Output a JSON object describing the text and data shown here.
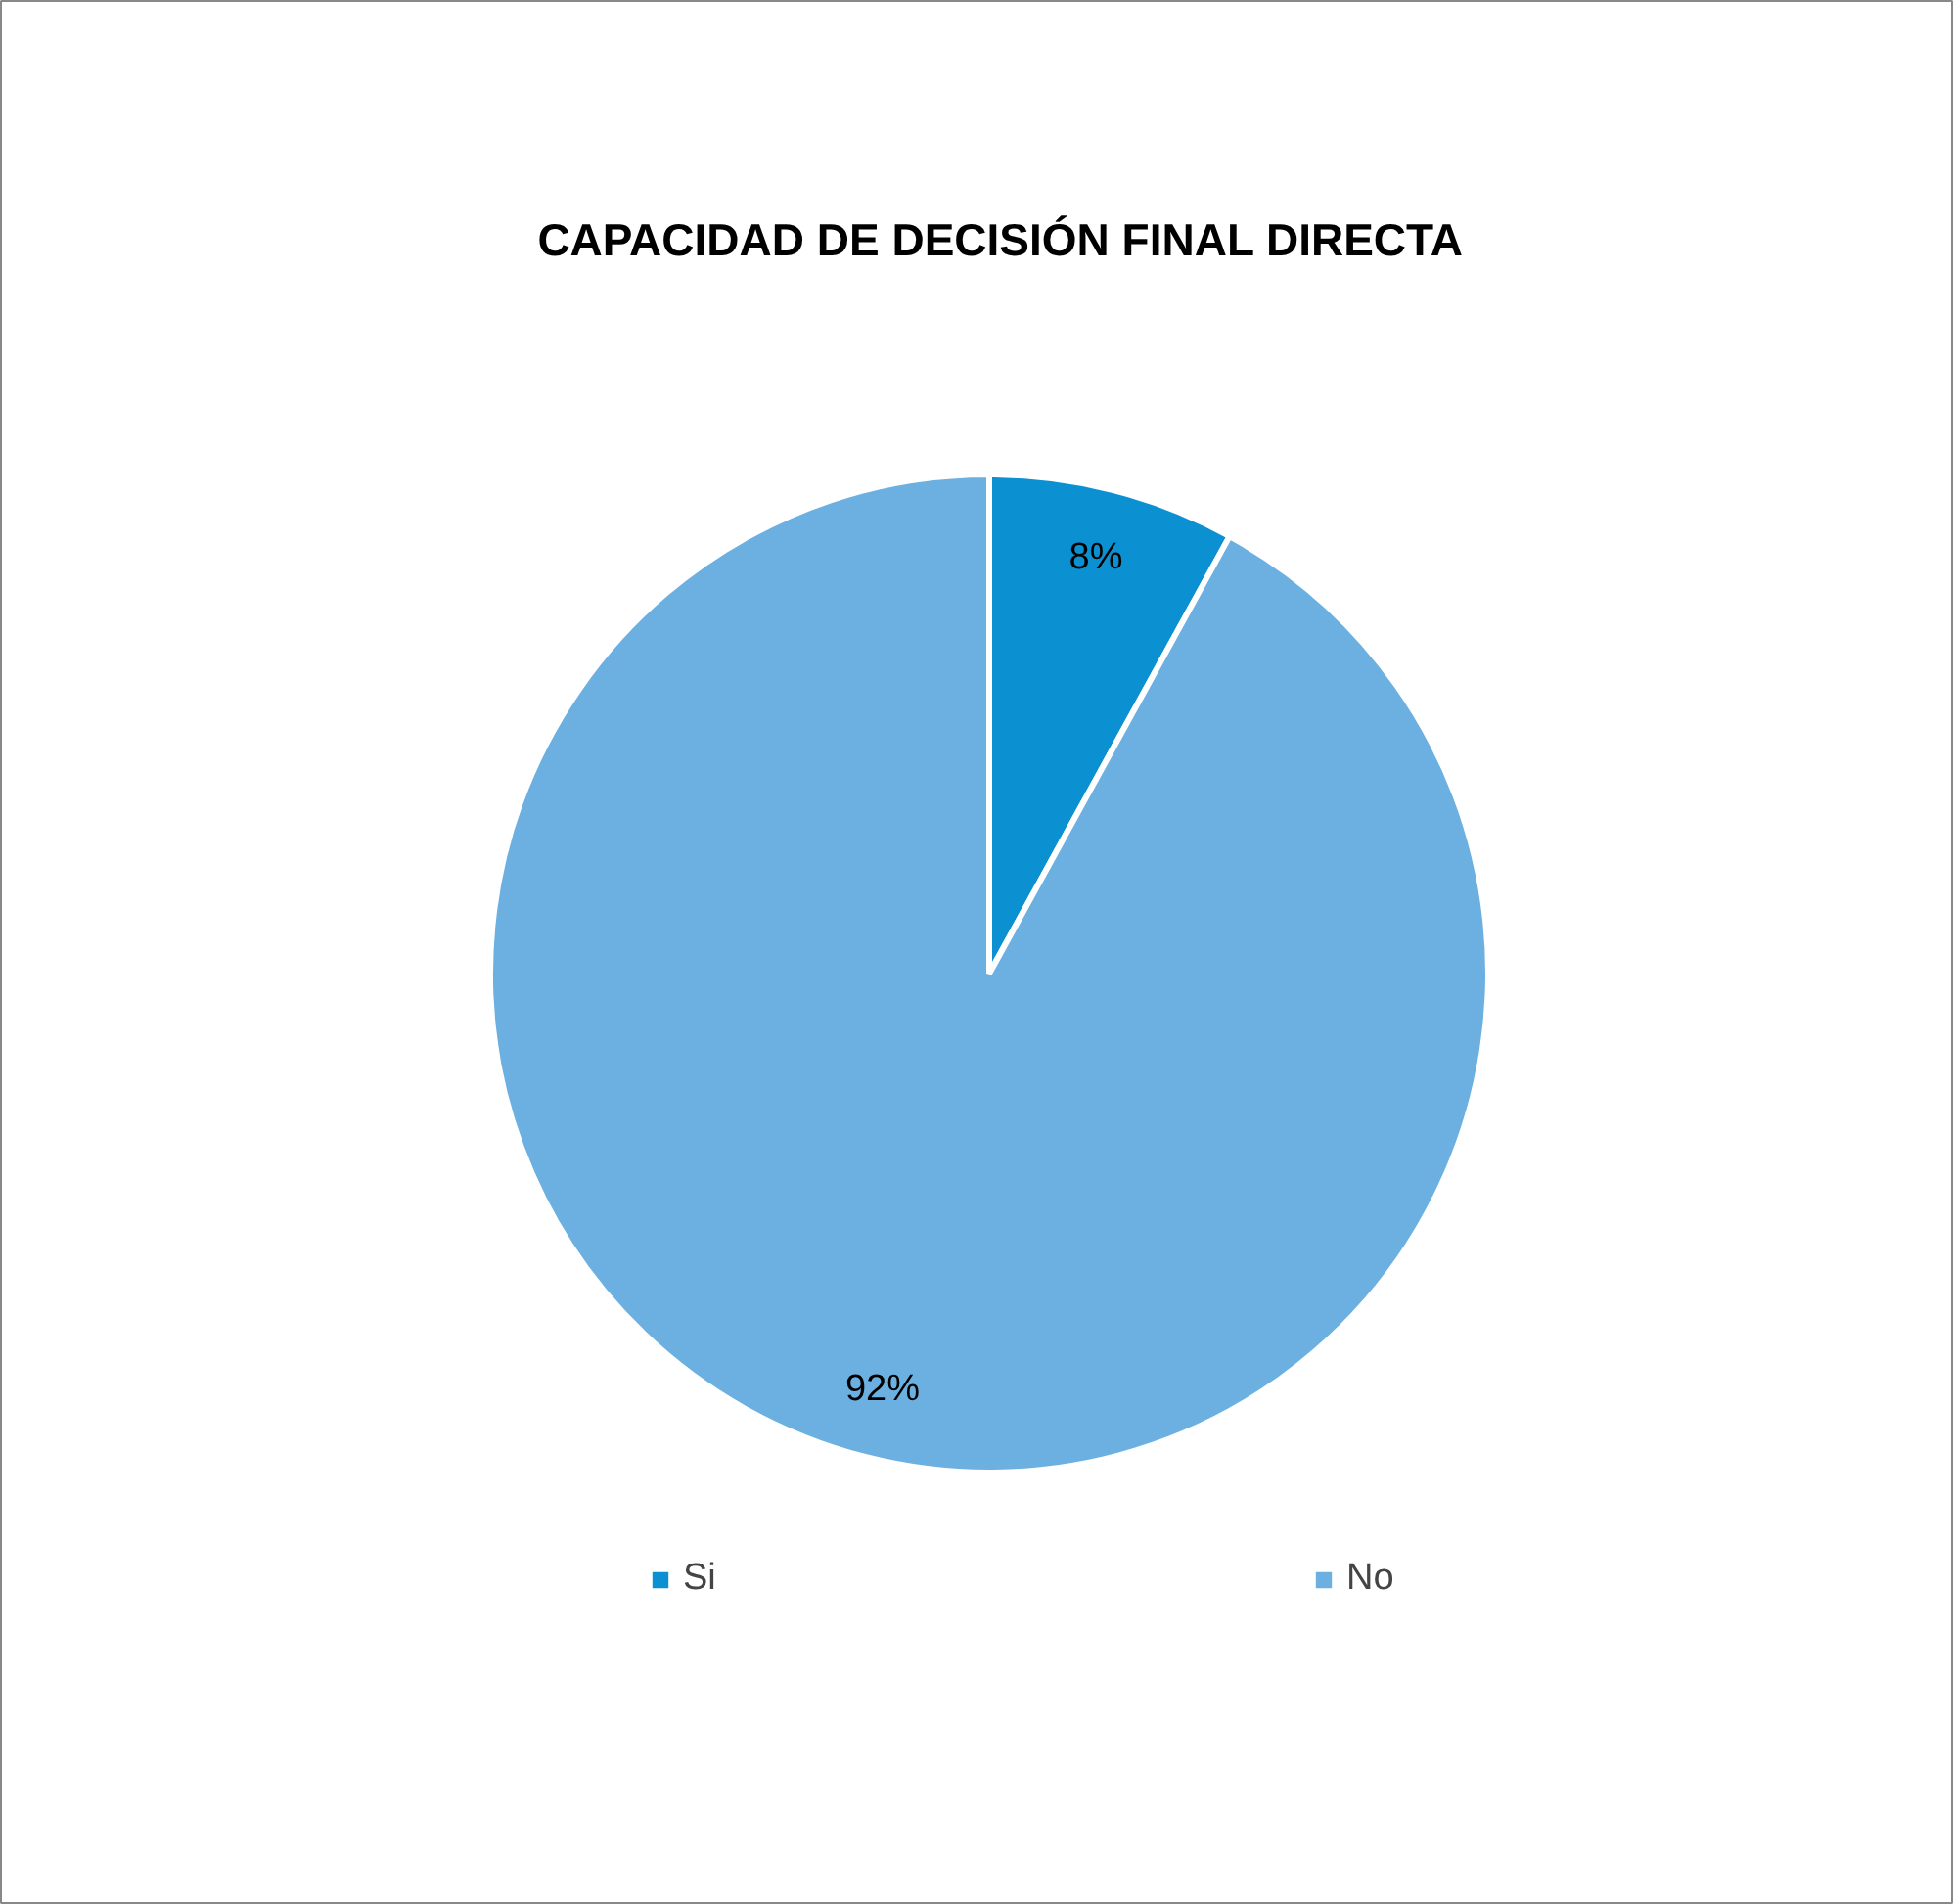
{
  "chart_data": {
    "type": "pie",
    "title": "CAPACIDAD DE DECISIÓN  FINAL DIRECTA",
    "categories": [
      "Si",
      "No"
    ],
    "values": [
      8,
      92
    ],
    "colors": [
      "#0b90d2",
      "#6cb0e2"
    ],
    "value_labels": [
      "8%",
      "92%"
    ],
    "legend": "bottom"
  }
}
